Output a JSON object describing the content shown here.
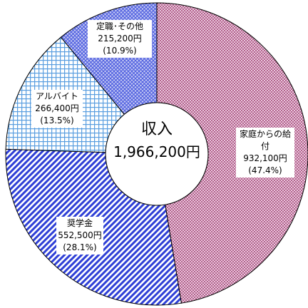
{
  "chart_data": {
    "type": "donut",
    "categories": [
      "家庭からの給付",
      "奨学金",
      "アルバイト",
      "定職･その他"
    ],
    "values": [
      932100,
      552500,
      266400,
      215200
    ],
    "value_labels": [
      "932,100円",
      "552,500円",
      "266,400円",
      "215,200円"
    ],
    "percents": [
      47.4,
      28.1,
      13.5,
      10.9
    ],
    "percent_labels": [
      "(47.4%)",
      "(28.1%)",
      "(13.5%)",
      "(10.9%)"
    ],
    "colors": [
      "#b3608c",
      "#2e3fd6",
      "#5a9ee0",
      "#5060e0"
    ],
    "center_title": "収入",
    "center_value": "1,966,200円"
  }
}
